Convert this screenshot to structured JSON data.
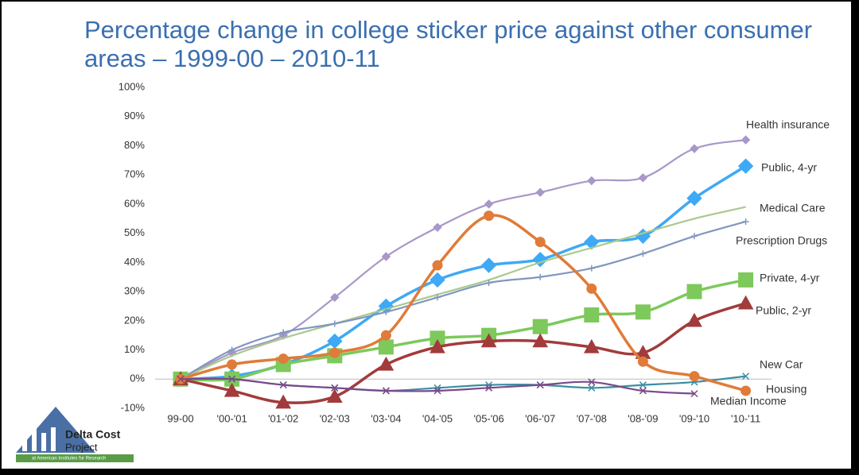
{
  "chart_data": {
    "type": "line",
    "title": "Percentage change in college sticker price against other consumer areas – 1999-00 – 2010-11",
    "categories": [
      "99-00",
      "'00-'01",
      "'01-'02",
      "'02-'03",
      "'03-'04",
      "'04-'05",
      "'05-'06",
      "'06-'07",
      "'07-'08",
      "'08-'09",
      "'09-'10",
      "'10-'11"
    ],
    "ylim": [
      -10,
      100
    ],
    "yticks": [
      {
        "value": -10,
        "label": "-10%"
      },
      {
        "value": 0,
        "label": "0%"
      },
      {
        "value": 10,
        "label": "10%"
      },
      {
        "value": 20,
        "label": "20%"
      },
      {
        "value": 30,
        "label": "30%"
      },
      {
        "value": 40,
        "label": "40%"
      },
      {
        "value": 50,
        "label": "50%"
      },
      {
        "value": 60,
        "label": "60%"
      },
      {
        "value": 70,
        "label": "70%"
      },
      {
        "value": 80,
        "label": "80%"
      },
      {
        "value": 90,
        "label": "90%"
      },
      {
        "value": 100,
        "label": "100%"
      }
    ],
    "grid": false,
    "series": [
      {
        "name": "Health insurance",
        "color": "#a897c8",
        "marker": "diamond",
        "values": [
          0,
          9,
          15,
          28,
          42,
          52,
          60,
          64,
          68,
          69,
          79,
          82
        ]
      },
      {
        "name": "Public, 4-yr",
        "color": "#3ea9f5",
        "marker": "diamond",
        "values": [
          0,
          1,
          5,
          13,
          25,
          34,
          39,
          41,
          47,
          49,
          62,
          73
        ]
      },
      {
        "name": "Medical Care",
        "color": "#a9c98e",
        "marker": "none",
        "values": [
          0,
          8,
          14,
          19,
          24,
          29,
          34,
          40,
          45,
          50,
          55,
          59
        ]
      },
      {
        "name": "Prescription Drugs",
        "color": "#8197bf",
        "marker": "plus",
        "values": [
          0,
          10,
          16,
          19,
          23,
          28,
          33,
          35,
          38,
          43,
          49,
          54
        ]
      },
      {
        "name": "Private, 4-yr",
        "color": "#7dc95b",
        "marker": "square",
        "values": [
          0,
          0,
          5,
          8,
          11,
          14,
          15,
          18,
          22,
          23,
          30,
          34
        ]
      },
      {
        "name": "Public, 2-yr",
        "color": "#a23b3b",
        "marker": "triangle",
        "values": [
          0,
          -4,
          -8,
          -6,
          5,
          11,
          13,
          13,
          11,
          9,
          20,
          26
        ]
      },
      {
        "name": "New Car",
        "color": "#3b8fa3",
        "marker": "x",
        "values": [
          0,
          0,
          -2,
          -3,
          -4,
          -3,
          -2,
          -2,
          -3,
          -2,
          -1,
          1
        ]
      },
      {
        "name": "Housing",
        "color": "#e07b39",
        "marker": "circle",
        "values": [
          0,
          5,
          7,
          9,
          15,
          39,
          56,
          47,
          31,
          6,
          1,
          -4
        ]
      },
      {
        "name": "Median Income",
        "color": "#7a4a8a",
        "marker": "x",
        "values": [
          0,
          0,
          -2,
          -3,
          -4,
          -4,
          -3,
          -2,
          -1,
          -4,
          -5,
          null
        ]
      }
    ]
  },
  "logo": {
    "line1": "Delta Cost",
    "line2": "Project",
    "line3": "at American Institutes for Research"
  }
}
